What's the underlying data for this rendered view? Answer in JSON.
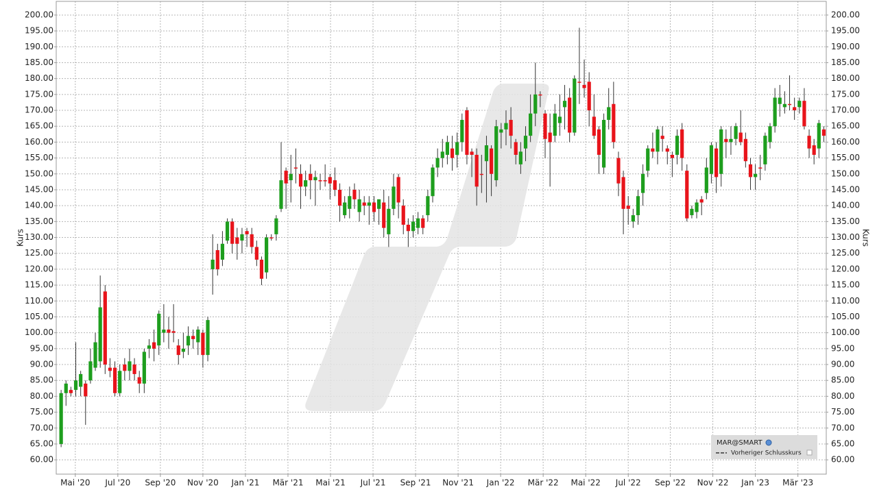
{
  "chart_data": {
    "type": "candlestick",
    "name": "MAR@SMART",
    "reference_label": "Vorheriger Schlusskurs",
    "ylabel": "Kurs",
    "up_color": "#1e9e1e",
    "down_color": "#e8141b",
    "grid": true,
    "ylim": [
      55.5,
      204.3
    ],
    "yticks": [
      {
        "value": 60,
        "label": "60.00"
      },
      {
        "value": 65,
        "label": "65.00"
      },
      {
        "value": 70,
        "label": "70.00"
      },
      {
        "value": 75,
        "label": "75.00"
      },
      {
        "value": 80,
        "label": "80.00"
      },
      {
        "value": 85,
        "label": "85.00"
      },
      {
        "value": 90,
        "label": "90.00"
      },
      {
        "value": 95,
        "label": "95.00"
      },
      {
        "value": 100,
        "label": "100.00"
      },
      {
        "value": 105,
        "label": "105.00"
      },
      {
        "value": 110,
        "label": "110.00"
      },
      {
        "value": 115,
        "label": "115.00"
      },
      {
        "value": 120,
        "label": "120.00"
      },
      {
        "value": 125,
        "label": "125.00"
      },
      {
        "value": 130,
        "label": "130.00"
      },
      {
        "value": 135,
        "label": "135.00"
      },
      {
        "value": 140,
        "label": "140.00"
      },
      {
        "value": 145,
        "label": "145.00"
      },
      {
        "value": 150,
        "label": "150.00"
      },
      {
        "value": 155,
        "label": "155.00"
      },
      {
        "value": 160,
        "label": "160.00"
      },
      {
        "value": 165,
        "label": "165.00"
      },
      {
        "value": 170,
        "label": "170.00"
      },
      {
        "value": 175,
        "label": "175.00"
      },
      {
        "value": 180,
        "label": "180.00"
      },
      {
        "value": 185,
        "label": "185.00"
      },
      {
        "value": 190,
        "label": "190.00"
      },
      {
        "value": 195,
        "label": "195.00"
      },
      {
        "value": 200,
        "label": "200.00"
      }
    ],
    "xlim": [
      -1,
      156.5
    ],
    "xticks": [
      {
        "value": 2.9,
        "label": "Mai '20"
      },
      {
        "value": 11.6,
        "label": "Jul '20"
      },
      {
        "value": 20.3,
        "label": "Sep '20"
      },
      {
        "value": 29.0,
        "label": "Nov '20"
      },
      {
        "value": 37.7,
        "label": "Jan '21"
      },
      {
        "value": 46.4,
        "label": "Mär '21"
      },
      {
        "value": 55.1,
        "label": "Mai '21"
      },
      {
        "value": 63.8,
        "label": "Jul '21"
      },
      {
        "value": 72.5,
        "label": "Sep '21"
      },
      {
        "value": 81.2,
        "label": "Nov '21"
      },
      {
        "value": 89.9,
        "label": "Jan '22"
      },
      {
        "value": 98.6,
        "label": "Mär '22"
      },
      {
        "value": 107.3,
        "label": "Mai '22"
      },
      {
        "value": 116.0,
        "label": "Jul '22"
      },
      {
        "value": 124.6,
        "label": "Sep '22"
      },
      {
        "value": 133.3,
        "label": "Nov '22"
      },
      {
        "value": 142.0,
        "label": "Jan '23"
      },
      {
        "value": 150.7,
        "label": "Mär '23"
      }
    ],
    "open": [
      65,
      81,
      82,
      82,
      83,
      84,
      85,
      89,
      91,
      113,
      89,
      89,
      81,
      90,
      88,
      90,
      86,
      84,
      95,
      97,
      96,
      100,
      101,
      100.5,
      96,
      94,
      96,
      99,
      97,
      100,
      93,
      120,
      126,
      123,
      129,
      135,
      130,
      129,
      132,
      131,
      127,
      123,
      119,
      130,
      131,
      139,
      151,
      148,
      152,
      150,
      146,
      150,
      148,
      148,
      148,
      149,
      148,
      145,
      137,
      139,
      145,
      138,
      141,
      140,
      141,
      139,
      141,
      131,
      139,
      149,
      140,
      134,
      132,
      133,
      136,
      137,
      143,
      152,
      155,
      156,
      158,
      156,
      160,
      170,
      157,
      156,
      150,
      154,
      158,
      148,
      163,
      164,
      167,
      160,
      153,
      158,
      162,
      169,
      175,
      169,
      163,
      162,
      166,
      171,
      174,
      163,
      179,
      178,
      179,
      168,
      164,
      152,
      167,
      172,
      155,
      149,
      140,
      135,
      137,
      144,
      151,
      158,
      157,
      162,
      158,
      156,
      156,
      164,
      151,
      137,
      138,
      142,
      144,
      150,
      158,
      150,
      161,
      160,
      161,
      163,
      161,
      153,
      149,
      152,
      153,
      160,
      165,
      172,
      171,
      172,
      171,
      171,
      173,
      162,
      159,
      158,
      164
    ],
    "high": [
      82,
      85,
      83,
      97,
      88,
      85,
      95,
      100,
      118,
      115,
      92,
      91,
      90,
      92,
      95,
      92,
      88,
      95,
      98,
      101,
      107,
      109,
      105,
      109,
      98,
      100,
      102,
      101,
      102,
      101,
      105,
      131,
      128,
      132,
      136,
      136,
      133,
      133,
      133,
      133,
      129,
      124,
      131,
      131,
      137,
      160,
      152,
      156,
      158,
      153,
      151,
      153,
      151,
      150,
      153,
      150,
      152,
      147,
      143,
      146,
      147,
      145,
      143,
      143,
      143,
      142,
      145,
      143,
      150,
      150,
      142,
      136,
      137,
      138,
      137,
      145,
      153,
      158,
      161,
      162,
      162,
      163,
      169,
      171,
      158,
      158,
      156,
      162,
      159,
      167,
      166,
      170,
      171,
      161,
      160,
      165,
      175,
      185,
      176,
      170,
      169,
      172,
      175,
      178,
      177,
      181,
      196,
      186,
      182,
      175,
      165,
      169,
      177,
      179,
      157,
      151,
      143,
      139,
      145,
      153,
      159,
      163,
      165,
      165,
      159,
      157,
      164,
      166,
      153,
      140,
      142,
      143,
      155,
      160,
      160,
      165,
      164,
      165,
      166,
      170,
      163,
      155,
      153,
      156,
      163,
      166,
      177,
      178,
      176,
      181,
      174,
      174,
      177,
      164,
      161,
      167,
      165
    ],
    "low": [
      64,
      77,
      80,
      80,
      80,
      71,
      84,
      88,
      89,
      87,
      86,
      80,
      80,
      85,
      85,
      85,
      81,
      81,
      92,
      91,
      93,
      97,
      95,
      97,
      90,
      92,
      93,
      95,
      93,
      89,
      91,
      112,
      118,
      121,
      128,
      125,
      123,
      125,
      127,
      125,
      121,
      115,
      117,
      129,
      129,
      138,
      139,
      141,
      147,
      139,
      143,
      142,
      140,
      145,
      146,
      142,
      143,
      135,
      136,
      136,
      139,
      135,
      137,
      134,
      135,
      134,
      130,
      127,
      137,
      136,
      131,
      127,
      130,
      131,
      131,
      135,
      141,
      149,
      152,
      153,
      151,
      152,
      157,
      153,
      149,
      140,
      144,
      141,
      143,
      146,
      158,
      159,
      158,
      153,
      150,
      154,
      160,
      165,
      171,
      155,
      146,
      160,
      162,
      164,
      160,
      162,
      172,
      174,
      165,
      161,
      150,
      150,
      164,
      158,
      143,
      131,
      134,
      133,
      134,
      140,
      149,
      155,
      153,
      157,
      153,
      149,
      153,
      151,
      135,
      136,
      136,
      137,
      142,
      147,
      144,
      146,
      155,
      156,
      159,
      159,
      152,
      145,
      145,
      148,
      151,
      158,
      163,
      168,
      169,
      170,
      167,
      169,
      164,
      155,
      153,
      155,
      160
    ],
    "close": [
      81,
      84,
      81,
      85,
      87,
      80,
      91,
      97,
      108,
      90,
      88,
      81,
      88,
      88,
      91,
      87,
      84,
      94,
      96,
      95,
      106,
      101,
      100,
      100,
      93,
      95,
      99,
      98,
      101,
      93,
      104,
      123,
      120,
      128,
      135,
      128,
      128,
      131,
      131,
      127,
      123,
      117,
      130,
      130,
      136,
      148,
      147,
      150,
      152,
      146,
      148,
      148,
      149,
      148,
      148,
      147,
      145,
      140,
      141,
      143,
      142,
      142,
      140,
      141,
      138,
      142,
      133,
      139,
      146,
      141,
      134,
      132,
      135,
      136,
      133,
      143,
      152,
      155,
      157,
      160,
      155,
      160,
      167,
      156,
      156,
      146,
      150,
      159,
      150,
      165,
      164,
      166,
      162,
      156,
      157,
      162,
      169,
      175,
      175,
      161,
      160,
      169,
      168,
      173,
      163,
      180,
      179,
      177,
      170,
      162,
      156,
      167,
      171,
      160,
      147,
      139,
      139,
      137,
      143,
      150,
      158,
      157,
      164,
      161,
      157,
      155,
      162,
      155,
      136,
      139,
      141,
      141,
      152,
      159,
      149,
      164,
      160,
      161,
      165,
      160,
      154,
      149,
      150,
      152,
      162,
      165,
      174,
      174,
      172,
      172,
      170,
      173,
      165,
      158,
      156,
      166,
      162
    ]
  }
}
